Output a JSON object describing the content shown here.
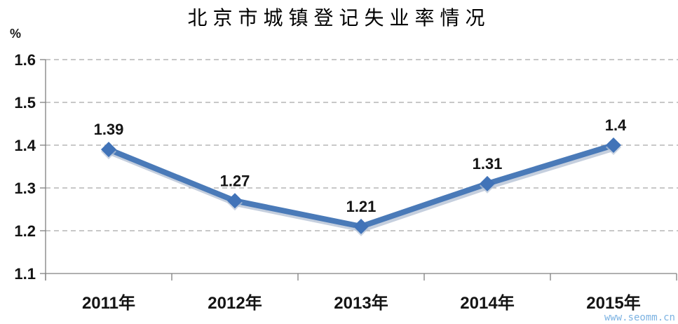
{
  "title": "北京市城镇登记失业率情况",
  "watermark": "www.seomm.cn",
  "chart_data": {
    "type": "line",
    "title": "北京市城镇登记失业率情况",
    "categories": [
      "2011年",
      "2012年",
      "2013年",
      "2014年",
      "2015年"
    ],
    "values": [
      1.39,
      1.27,
      1.21,
      1.31,
      1.4
    ],
    "data_labels": [
      "1.39",
      "1.27",
      "1.21",
      "1.31",
      "1.4"
    ],
    "xlabel": "",
    "ylabel": "%",
    "ylim": [
      1.1,
      1.6
    ],
    "ytick_step": 0.1,
    "ytick_labels": [
      "1.1",
      "1.2",
      "1.3",
      "1.4",
      "1.5",
      "1.6"
    ],
    "grid": "horizontal-dashed",
    "legend": "none",
    "marker": "diamond",
    "series_color": "#4a7ab8",
    "marker_color": "#4173b8",
    "shadow_color": "#b7c3d6",
    "axis_color": "#808080",
    "gridline_color": "#a8a8a8",
    "label_color": "#141414",
    "watermark_color": "#7db3e2"
  }
}
